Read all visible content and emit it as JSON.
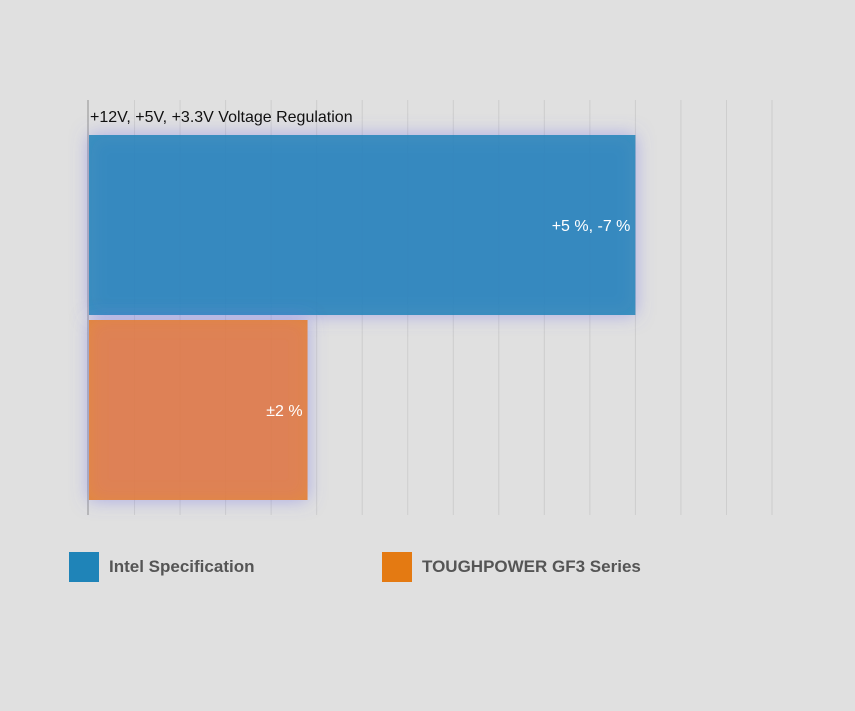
{
  "chart_data": {
    "type": "bar",
    "orientation": "horizontal",
    "category_label": "+12V, +5V, +3.3V Voltage Regulation",
    "series": [
      {
        "name": "Intel Specification",
        "value": 12,
        "label": "+5 %, -7 %",
        "color": "#1f84b8"
      },
      {
        "name": "TOUGHPOWER GF3 Series",
        "value": 4.8,
        "label": "±2 %",
        "color": "#e47a12"
      }
    ],
    "xlim": [
      0,
      15
    ],
    "grid": true,
    "legend_position": "bottom-left"
  }
}
